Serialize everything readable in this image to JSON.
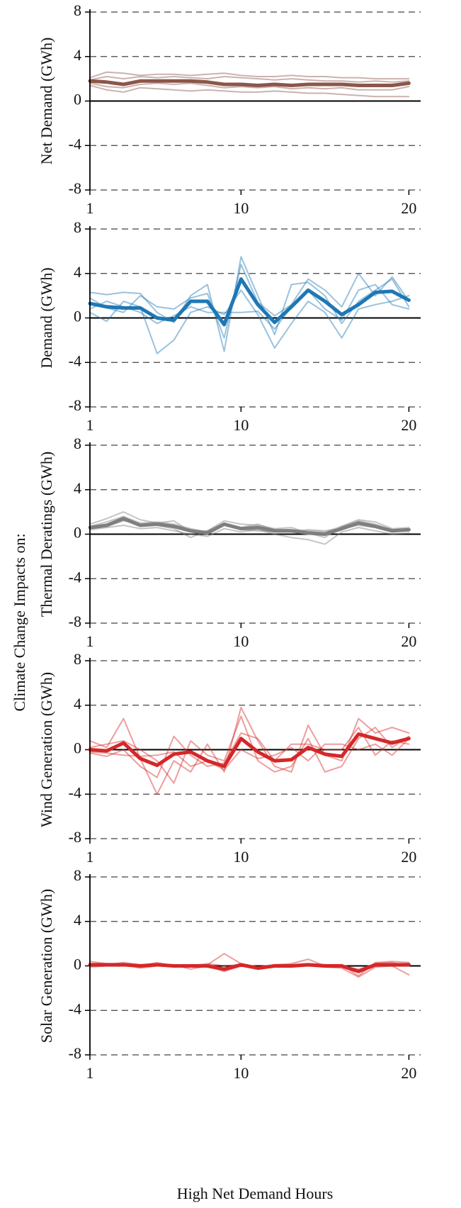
{
  "ylabel": "Climate Change Impacts on:",
  "xlabel": "High Net Demand Hours",
  "chart_data": [
    {
      "type": "line",
      "ylabel": "Net Demand (GWh)",
      "x": [
        1,
        2,
        3,
        4,
        5,
        6,
        7,
        8,
        9,
        10,
        11,
        12,
        13,
        14,
        15,
        16,
        17,
        18,
        19,
        20
      ],
      "xlim": [
        1,
        20.7
      ],
      "xticks": [
        1,
        10,
        20
      ],
      "ylim": [
        -8,
        8
      ],
      "yticks": [
        -8,
        -4,
        0,
        4,
        8
      ],
      "grid": true,
      "series": [
        {
          "color": "#8c564b",
          "alpha": 0.45,
          "linewidth": 2,
          "values": [
            2.1,
            2.6,
            2.5,
            2.3,
            2.4,
            2.4,
            2.3,
            2.4,
            2.5,
            2.3,
            2.2,
            2.2,
            2.3,
            2.2,
            2.2,
            2.1,
            2.1,
            2.0,
            2.0,
            2.0
          ]
        },
        {
          "color": "#8c564b",
          "alpha": 0.45,
          "linewidth": 2,
          "values": [
            1.4,
            1.0,
            0.8,
            1.2,
            1.1,
            1.0,
            0.9,
            1.0,
            0.9,
            0.8,
            0.8,
            0.9,
            0.8,
            0.7,
            0.7,
            0.6,
            0.5,
            0.4,
            0.4,
            0.4
          ]
        },
        {
          "color": "#8c564b",
          "alpha": 0.45,
          "linewidth": 2,
          "values": [
            1.9,
            2.2,
            2.0,
            2.2,
            2.1,
            2.2,
            2.1,
            2.0,
            2.2,
            2.1,
            2.0,
            1.9,
            2.0,
            1.9,
            1.8,
            1.8,
            1.7,
            1.8,
            1.7,
            1.8
          ]
        },
        {
          "color": "#8c564b",
          "alpha": 0.45,
          "linewidth": 2,
          "values": [
            1.6,
            1.3,
            1.2,
            1.5,
            1.6,
            1.5,
            1.6,
            1.4,
            1.2,
            1.3,
            1.2,
            1.3,
            1.1,
            1.2,
            1.1,
            1.2,
            1.0,
            1.0,
            1.0,
            1.3
          ]
        },
        {
          "color": "#8c564b",
          "alpha": 1,
          "linewidth": 5,
          "values": [
            1.8,
            1.7,
            1.5,
            1.8,
            1.8,
            1.8,
            1.8,
            1.7,
            1.5,
            1.5,
            1.4,
            1.5,
            1.4,
            1.5,
            1.5,
            1.5,
            1.4,
            1.4,
            1.4,
            1.6
          ]
        }
      ]
    },
    {
      "type": "line",
      "ylabel": "Demand (GWh)",
      "x": [
        1,
        2,
        3,
        4,
        5,
        6,
        7,
        8,
        9,
        10,
        11,
        12,
        13,
        14,
        15,
        16,
        17,
        18,
        19,
        20
      ],
      "xlim": [
        1,
        20.7
      ],
      "xticks": [
        1,
        10,
        20
      ],
      "ylim": [
        -8,
        8
      ],
      "yticks": [
        -8,
        -4,
        0,
        4,
        8
      ],
      "grid": true,
      "series": [
        {
          "color": "#1f77b4",
          "alpha": 0.45,
          "linewidth": 2,
          "values": [
            2.3,
            2.1,
            2.3,
            2.2,
            0.5,
            -0.4,
            2.0,
            3.0,
            -3.0,
            5.5,
            2.0,
            -1.5,
            3.0,
            3.2,
            2.0,
            -0.5,
            1.5,
            2.5,
            3.5,
            1.0
          ]
        },
        {
          "color": "#1f77b4",
          "alpha": 0.45,
          "linewidth": 2,
          "values": [
            0.5,
            -0.3,
            1.5,
            1.0,
            -3.2,
            -2.0,
            0.5,
            1.0,
            0.3,
            2.5,
            0.3,
            -2.7,
            -0.5,
            1.5,
            0.5,
            -1.8,
            0.8,
            1.2,
            1.5,
            2.0
          ]
        },
        {
          "color": "#1f77b4",
          "alpha": 0.45,
          "linewidth": 2,
          "values": [
            1.8,
            0.9,
            0.5,
            2.0,
            1.0,
            0.8,
            1.8,
            2.2,
            -1.8,
            4.8,
            1.4,
            0.2,
            1.2,
            3.5,
            2.5,
            1.0,
            4.0,
            2.0,
            3.7,
            1.5
          ]
        },
        {
          "color": "#1f77b4",
          "alpha": 0.45,
          "linewidth": 2,
          "values": [
            0.8,
            1.5,
            1.0,
            0.5,
            -0.5,
            0.2,
            1.0,
            0.5,
            0.5,
            0.5,
            0.6,
            -1.0,
            1.0,
            2.5,
            0.8,
            -0.2,
            2.5,
            3.0,
            1.2,
            0.8
          ]
        },
        {
          "color": "#1f77b4",
          "alpha": 1,
          "linewidth": 5,
          "values": [
            1.3,
            1.0,
            0.9,
            0.9,
            0.0,
            -0.2,
            1.5,
            1.5,
            -0.6,
            3.5,
            1.2,
            -0.4,
            1.0,
            2.5,
            1.5,
            0.3,
            1.2,
            2.3,
            2.4,
            1.6
          ]
        }
      ]
    },
    {
      "type": "line",
      "ylabel": "Thermal Deratings (GWh)",
      "x": [
        1,
        2,
        3,
        4,
        5,
        6,
        7,
        8,
        9,
        10,
        11,
        12,
        13,
        14,
        15,
        16,
        17,
        18,
        19,
        20
      ],
      "xlim": [
        1,
        20.7
      ],
      "xticks": [
        1,
        10,
        20
      ],
      "ylim": [
        -8,
        8
      ],
      "yticks": [
        -8,
        -4,
        0,
        4,
        8
      ],
      "grid": true,
      "series": [
        {
          "color": "#7f7f7f",
          "alpha": 0.45,
          "linewidth": 2,
          "values": [
            0.9,
            1.4,
            2.0,
            1.3,
            1.0,
            1.2,
            0.2,
            0.3,
            1.2,
            0.9,
            0.8,
            0.5,
            0.6,
            0.1,
            -0.3,
            0.7,
            1.3,
            1.1,
            0.5,
            0.6
          ]
        },
        {
          "color": "#7f7f7f",
          "alpha": 0.45,
          "linewidth": 2,
          "values": [
            0.4,
            0.6,
            0.8,
            0.5,
            0.6,
            0.3,
            0.0,
            -0.2,
            0.5,
            0.2,
            0.4,
            0.0,
            -0.3,
            -0.5,
            -0.9,
            0.2,
            0.6,
            0.3,
            0.0,
            0.1
          ]
        },
        {
          "color": "#7f7f7f",
          "alpha": 0.45,
          "linewidth": 2,
          "values": [
            0.7,
            1.1,
            1.6,
            1.0,
            1.1,
            0.9,
            0.5,
            0.2,
            0.8,
            0.6,
            0.9,
            0.4,
            0.4,
            0.3,
            0.2,
            0.7,
            1.2,
            0.9,
            0.4,
            0.4
          ]
        },
        {
          "color": "#7f7f7f",
          "alpha": 0.45,
          "linewidth": 2,
          "values": [
            0.5,
            0.7,
            1.2,
            0.9,
            0.8,
            0.5,
            -0.3,
            0.3,
            1.0,
            0.4,
            0.3,
            0.2,
            0.2,
            0.4,
            0.3,
            0.5,
            0.8,
            0.6,
            0.2,
            0.3
          ]
        },
        {
          "color": "#7f7f7f",
          "alpha": 1,
          "linewidth": 5,
          "values": [
            0.6,
            0.8,
            1.4,
            0.8,
            0.9,
            0.7,
            0.3,
            0.1,
            0.9,
            0.5,
            0.6,
            0.3,
            0.3,
            0.1,
            0.0,
            0.5,
            1.0,
            0.7,
            0.3,
            0.4
          ]
        }
      ]
    },
    {
      "type": "line",
      "ylabel": "Wind Generation (GWh)",
      "x": [
        1,
        2,
        3,
        4,
        5,
        6,
        7,
        8,
        9,
        10,
        11,
        12,
        13,
        14,
        15,
        16,
        17,
        18,
        19,
        20
      ],
      "xlim": [
        1,
        20.7
      ],
      "xticks": [
        1,
        10,
        20
      ],
      "ylim": [
        -8,
        8
      ],
      "yticks": [
        -8,
        -4,
        0,
        4,
        8
      ],
      "grid": true,
      "series": [
        {
          "color": "#d62728",
          "alpha": 0.45,
          "linewidth": 2,
          "values": [
            0.8,
            0.2,
            2.8,
            -0.8,
            -4.0,
            -1.0,
            -2.0,
            0.5,
            -2.0,
            3.8,
            0.8,
            -1.5,
            -2.0,
            2.2,
            -0.5,
            -1.0,
            2.8,
            1.5,
            2.0,
            1.5
          ]
        },
        {
          "color": "#d62728",
          "alpha": 0.45,
          "linewidth": 2,
          "values": [
            -0.3,
            -0.6,
            0,
            -1.5,
            -2.5,
            1.2,
            -0.5,
            -1.5,
            -1.2,
            1.5,
            1.0,
            -1.0,
            0.5,
            0.5,
            0.0,
            0.0,
            2.0,
            -0.5,
            0.8,
            0.5
          ]
        },
        {
          "color": "#d62728",
          "alpha": 0.45,
          "linewidth": 2,
          "values": [
            0.2,
            0.5,
            0.8,
            0.0,
            -1.0,
            -3.0,
            0.8,
            -0.5,
            -1.0,
            3.0,
            -1.0,
            -2.0,
            -1.5,
            1.0,
            -2.0,
            -1.5,
            1.0,
            2.0,
            0.2,
            1.2
          ]
        },
        {
          "color": "#d62728",
          "alpha": 0.45,
          "linewidth": 2,
          "values": [
            -0.2,
            -0.3,
            -0.5,
            -0.6,
            -0.5,
            -0.2,
            -1.5,
            -1.0,
            -1.8,
            0.0,
            -0.8,
            -0.5,
            0.2,
            -1.0,
            0.5,
            0.5,
            0.0,
            0.5,
            -0.5,
            1.0
          ]
        },
        {
          "color": "#d62728",
          "alpha": 1,
          "linewidth": 5,
          "values": [
            0,
            -0.1,
            0.6,
            -0.8,
            -1.4,
            -0.4,
            -0.2,
            -1.0,
            -1.5,
            1.0,
            -0.2,
            -1.0,
            -0.9,
            0.2,
            -0.4,
            -0.6,
            1.4,
            1.0,
            0.6,
            1.0
          ]
        }
      ]
    },
    {
      "type": "line",
      "ylabel": "Solar Generation (GWh)",
      "x": [
        1,
        2,
        3,
        4,
        5,
        6,
        7,
        8,
        9,
        10,
        11,
        12,
        13,
        14,
        15,
        16,
        17,
        18,
        19,
        20
      ],
      "xlim": [
        1,
        20.7
      ],
      "xticks": [
        1,
        10,
        20
      ],
      "ylim": [
        -8,
        8
      ],
      "yticks": [
        -8,
        -4,
        0,
        4,
        8
      ],
      "grid": true,
      "series": [
        {
          "color": "#d62728",
          "alpha": 0.45,
          "linewidth": 2,
          "values": [
            0.4,
            0.2,
            0.2,
            0.0,
            0.3,
            0.0,
            0.1,
            0.1,
            1.1,
            0.2,
            -0.1,
            0.1,
            0.2,
            0.6,
            0.0,
            0.1,
            -0.9,
            0.3,
            0.4,
            0.3
          ]
        },
        {
          "color": "#d62728",
          "alpha": 0.45,
          "linewidth": 2,
          "values": [
            -0.1,
            0.0,
            0.1,
            -0.2,
            0.0,
            0.1,
            -0.3,
            0.0,
            -0.5,
            0.0,
            -0.3,
            -0.1,
            -0.1,
            0.0,
            -0.1,
            -0.2,
            -1.0,
            -0.1,
            0.0,
            -0.8
          ]
        },
        {
          "color": "#d62728",
          "alpha": 0.45,
          "linewidth": 2,
          "values": [
            0.2,
            0.1,
            0.3,
            0.1,
            0.2,
            -0.1,
            0.0,
            0.2,
            0.0,
            0.1,
            -0.1,
            0.0,
            0.1,
            0.2,
            0.1,
            0.0,
            -0.3,
            0.2,
            0.3,
            0.0
          ]
        },
        {
          "color": "#d62728",
          "alpha": 0.45,
          "linewidth": 2,
          "values": [
            0.0,
            0.1,
            0.0,
            0.0,
            0.1,
            0.0,
            0.1,
            -0.1,
            -0.3,
            0.1,
            -0.2,
            0.1,
            0.0,
            0.1,
            0.1,
            0.1,
            -0.6,
            0.1,
            0.1,
            0.2
          ]
        },
        {
          "color": "#d62728",
          "alpha": 1,
          "linewidth": 5,
          "values": [
            0.1,
            0.1,
            0.1,
            0,
            0.1,
            0,
            0,
            0,
            -0.3,
            0.1,
            -0.2,
            0,
            0,
            0.1,
            0,
            0,
            -0.5,
            0.1,
            0.1,
            0.1
          ]
        }
      ]
    }
  ]
}
